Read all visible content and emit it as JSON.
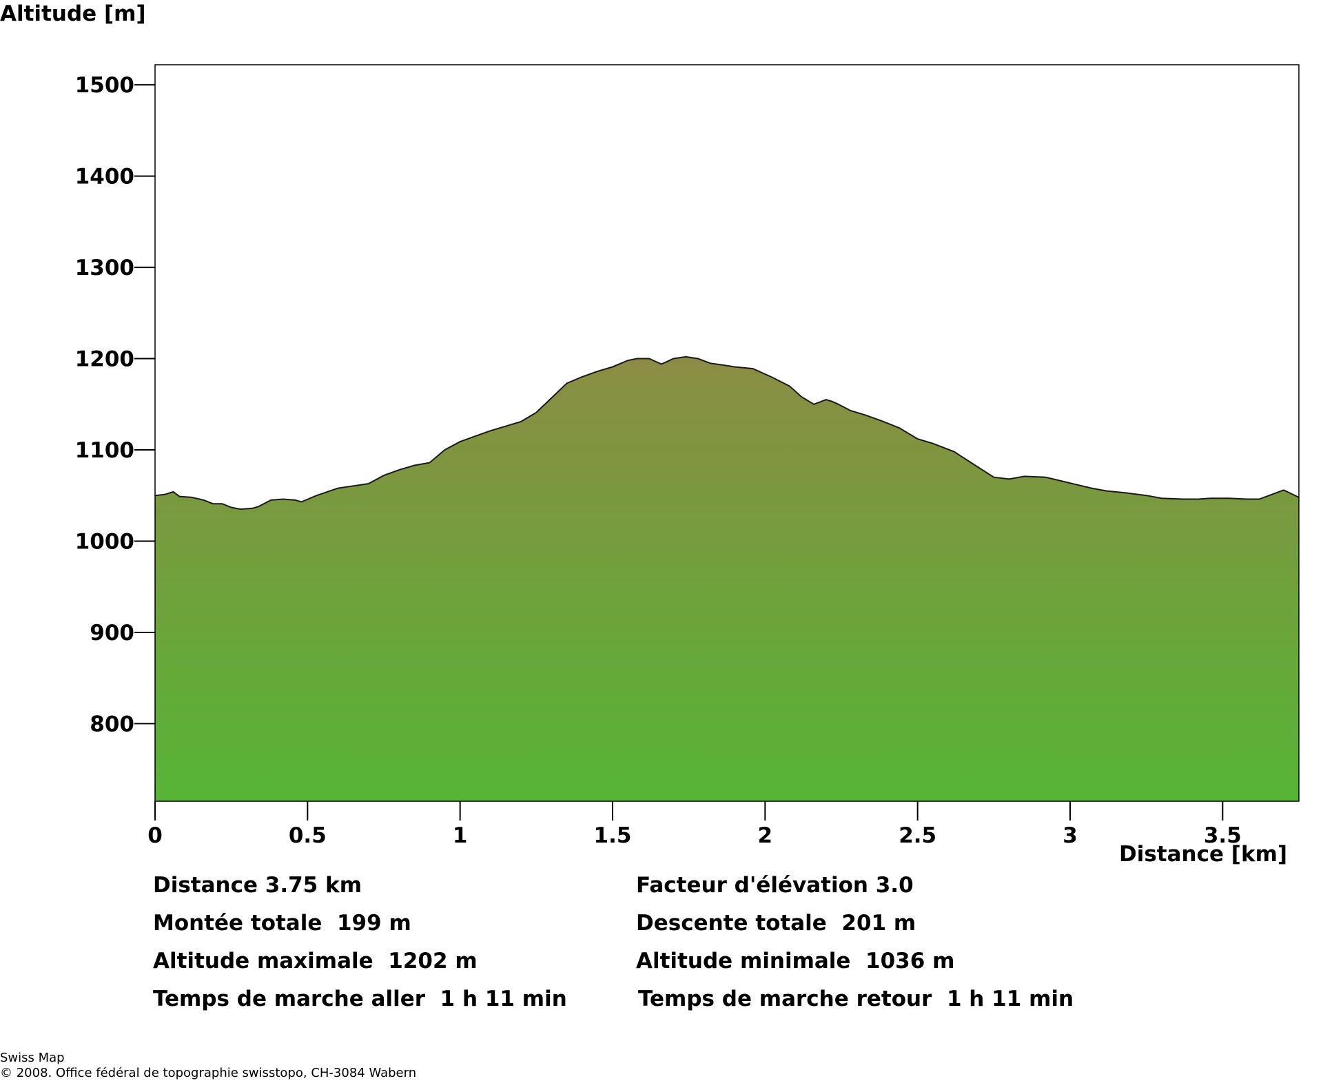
{
  "chart_data": {
    "type": "area",
    "ylabel": "Altitude [m]",
    "xlabel": "Distance [km]",
    "xlim": [
      0,
      3.75
    ],
    "ylim": [
      715,
      1522
    ],
    "x_ticks": [
      "0",
      "0.5",
      "1",
      "1.5",
      "2",
      "2.5",
      "3",
      "3.5"
    ],
    "y_ticks": [
      "1500",
      "1400",
      "1300",
      "1200",
      "1100",
      "1000",
      "900",
      "800"
    ],
    "fill_gradient": [
      "#8b8c43",
      "#56b535"
    ],
    "x": [
      0,
      0.03,
      0.06,
      0.08,
      0.12,
      0.16,
      0.19,
      0.22,
      0.25,
      0.28,
      0.32,
      0.34,
      0.38,
      0.42,
      0.46,
      0.48,
      0.53,
      0.6,
      0.66,
      0.7,
      0.75,
      0.8,
      0.85,
      0.9,
      0.95,
      1.0,
      1.05,
      1.1,
      1.15,
      1.2,
      1.25,
      1.3,
      1.35,
      1.4,
      1.45,
      1.5,
      1.55,
      1.58,
      1.62,
      1.66,
      1.7,
      1.74,
      1.78,
      1.82,
      1.86,
      1.9,
      1.96,
      2.02,
      2.08,
      2.12,
      2.16,
      2.2,
      2.22,
      2.24,
      2.28,
      2.33,
      2.38,
      2.44,
      2.5,
      2.55,
      2.62,
      2.68,
      2.75,
      2.8,
      2.85,
      2.92,
      2.97,
      3.02,
      3.07,
      3.12,
      3.18,
      3.25,
      3.3,
      3.37,
      3.42,
      3.46,
      3.52,
      3.58,
      3.62,
      3.66,
      3.7,
      3.75
    ],
    "y": [
      1050,
      1051,
      1054,
      1049,
      1048,
      1045,
      1041,
      1041,
      1037,
      1035,
      1036,
      1038,
      1045,
      1046,
      1045,
      1043,
      1050,
      1058,
      1061,
      1063,
      1072,
      1078,
      1083,
      1086,
      1100,
      1109,
      1115,
      1121,
      1126,
      1131,
      1141,
      1157,
      1173,
      1180,
      1186,
      1191,
      1198,
      1200,
      1200,
      1194,
      1200,
      1202,
      1200,
      1195,
      1193,
      1191,
      1189,
      1180,
      1170,
      1158,
      1150,
      1155,
      1153,
      1150,
      1143,
      1138,
      1132,
      1124,
      1112,
      1107,
      1098,
      1085,
      1070,
      1068,
      1071,
      1070,
      1066,
      1062,
      1058,
      1055,
      1053,
      1050,
      1047,
      1046,
      1046,
      1047,
      1047,
      1046,
      1046,
      1051,
      1056,
      1048
    ]
  },
  "stats": {
    "distance": "Distance 3.75 km",
    "elev_factor": "Facteur d'élévation 3.0",
    "ascent": "Montée totale  199 m",
    "descent": "Descente totale  201 m",
    "alt_max": "Altitude maximale  1202 m",
    "alt_min": "Altitude minimale  1036 m",
    "time_out": "Temps de marche aller  1 h 11 min",
    "time_back": "Temps de marche retour  1 h 11 min"
  },
  "footer": {
    "line1": "Swiss Map",
    "line2": "© 2008. Office fédéral de topographie swisstopo, CH-3084 Wabern"
  }
}
